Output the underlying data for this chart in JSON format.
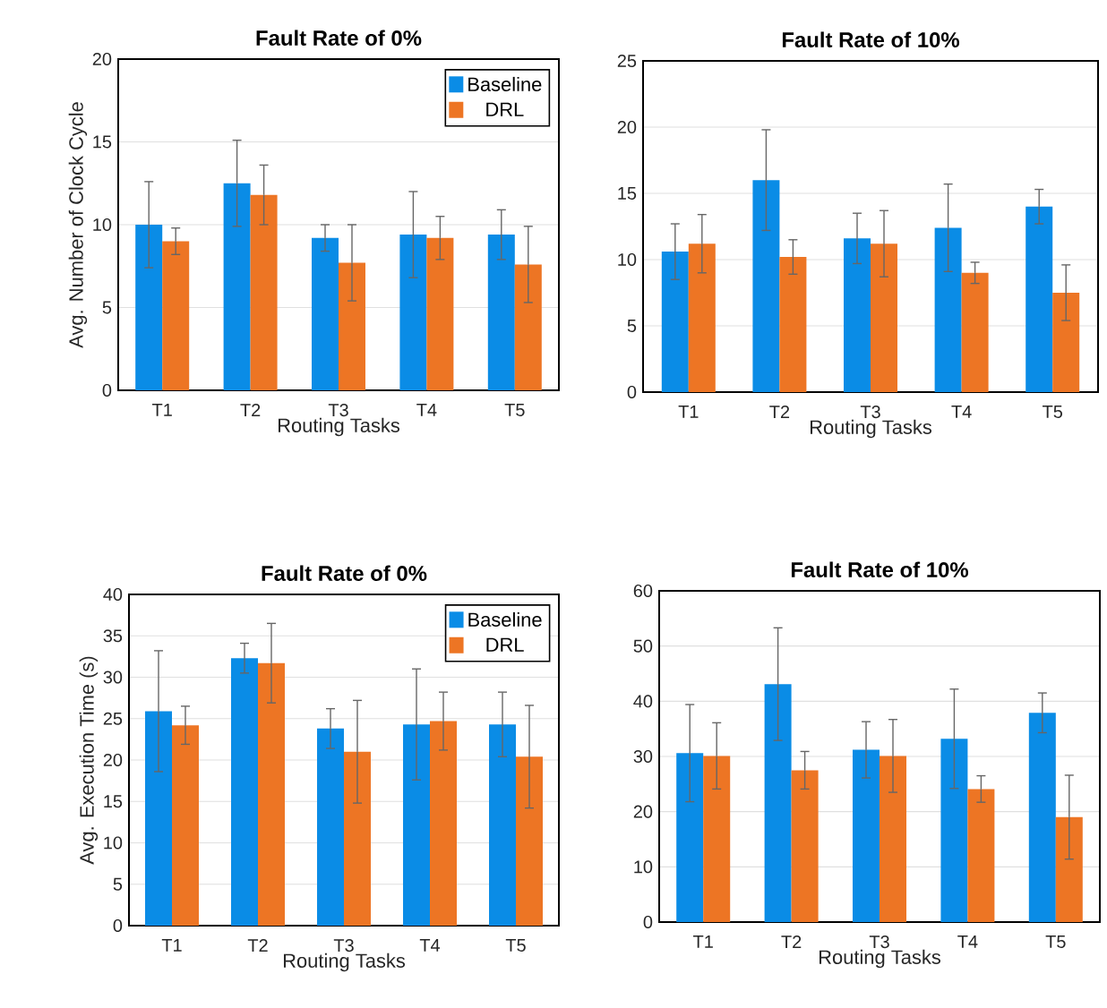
{
  "chart_data": [
    {
      "type": "bar",
      "title": "Fault Rate of 0%",
      "xlabel": "Routing Tasks",
      "ylabel": "Avg. Number of Clock Cycle",
      "categories": [
        "T1",
        "T2",
        "T3",
        "T4",
        "T5"
      ],
      "series": [
        {
          "name": "Baseline",
          "color": "#0a8ce6",
          "values": [
            10.0,
            12.5,
            9.2,
            9.4,
            9.4
          ],
          "errors": [
            2.6,
            2.6,
            0.8,
            2.6,
            1.5
          ]
        },
        {
          "name": "DRL",
          "color": "#ed7524",
          "values": [
            9.0,
            11.8,
            7.7,
            9.2,
            7.6
          ],
          "errors": [
            0.8,
            1.8,
            2.3,
            1.3,
            2.3
          ]
        }
      ],
      "ylim": [
        0,
        20
      ],
      "yticks": [
        0,
        5,
        10,
        15,
        20
      ],
      "grid": "y",
      "legend": "top right"
    },
    {
      "type": "bar",
      "title": "Fault Rate of 10%",
      "xlabel": "Routing Tasks",
      "categories": [
        "T1",
        "T2",
        "T3",
        "T4",
        "T5"
      ],
      "series": [
        {
          "color": "#0a8ce6",
          "values": [
            10.6,
            16.0,
            11.6,
            12.4,
            14.0
          ],
          "errors": [
            2.1,
            3.8,
            1.9,
            3.3,
            1.3
          ]
        },
        {
          "color": "#ed7524",
          "values": [
            11.2,
            10.2,
            11.2,
            9.0,
            7.5
          ],
          "errors": [
            2.2,
            1.3,
            2.5,
            0.8,
            2.1
          ]
        }
      ],
      "ylim": [
        0,
        25
      ],
      "yticks": [
        0,
        5,
        10,
        15,
        20,
        25
      ],
      "grid": "y"
    },
    {
      "type": "bar",
      "title": "Fault Rate of 0%",
      "xlabel": "Routing Tasks",
      "ylabel": "Avg. Execution Time (s)",
      "categories": [
        "T1",
        "T2",
        "T3",
        "T4",
        "T5"
      ],
      "series": [
        {
          "name": "Baseline",
          "color": "#0a8ce6",
          "values": [
            25.9,
            32.3,
            23.8,
            24.3,
            24.3
          ],
          "errors": [
            7.3,
            1.8,
            2.4,
            6.7,
            3.9
          ]
        },
        {
          "name": "DRL",
          "color": "#ed7524",
          "values": [
            24.2,
            31.7,
            21.0,
            24.7,
            20.4
          ],
          "errors": [
            2.3,
            4.8,
            6.2,
            3.5,
            6.2
          ]
        }
      ],
      "ylim": [
        0,
        40
      ],
      "yticks": [
        0,
        5,
        10,
        15,
        20,
        25,
        30,
        35,
        40
      ],
      "grid": "y",
      "legend": "top right"
    },
    {
      "type": "bar",
      "title": "Fault Rate of 10%",
      "xlabel": "Routing Tasks",
      "categories": [
        "T1",
        "T2",
        "T3",
        "T4",
        "T5"
      ],
      "series": [
        {
          "color": "#0a8ce6",
          "values": [
            30.6,
            43.1,
            31.2,
            33.2,
            37.9
          ],
          "errors": [
            8.8,
            10.2,
            5.1,
            9.0,
            3.6
          ]
        },
        {
          "color": "#ed7524",
          "values": [
            30.1,
            27.5,
            30.1,
            24.1,
            19.0
          ],
          "errors": [
            6.0,
            3.4,
            6.6,
            2.4,
            7.6
          ]
        }
      ],
      "ylim": [
        0,
        60
      ],
      "yticks": [
        0,
        10,
        20,
        30,
        40,
        50,
        60
      ],
      "grid": "y"
    }
  ]
}
